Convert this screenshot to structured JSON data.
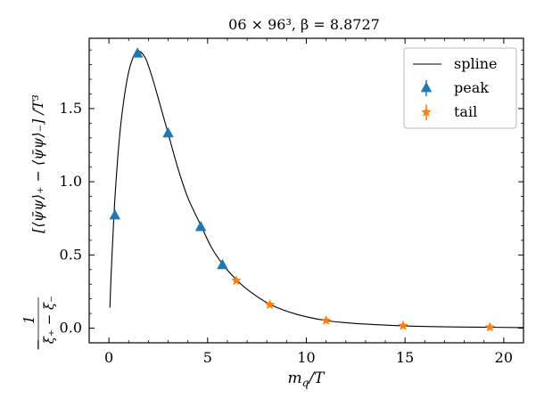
{
  "chart_data": {
    "type": "scatter",
    "title": "06 × 96³, β = 8.8727",
    "xlabel": "m_q/T",
    "ylabel": {
      "prefix": "1",
      "denominator": "ξ₊ − ξ₋",
      "body": "[⟨ψ̄ψ⟩₊ − ⟨ψ̄ψ⟩₋] /T³"
    },
    "xlim": [
      -1.0,
      21.0
    ],
    "ylim": [
      -0.1,
      1.98
    ],
    "x_ticks": [
      0,
      5,
      10,
      15,
      20
    ],
    "y_ticks": [
      0.0,
      0.5,
      1.0,
      1.5
    ],
    "x_tick_labels": [
      "0",
      "5",
      "10",
      "15",
      "20"
    ],
    "y_tick_labels": [
      "0.0",
      "0.5",
      "1.0",
      "1.5"
    ],
    "grid": false,
    "legend_position": "top-right",
    "series": [
      {
        "name": "spline",
        "type": "line",
        "color": "#000000",
        "x": [
          0.05,
          0.1,
          0.2,
          0.3,
          0.45,
          0.6,
          0.8,
          1.0,
          1.2,
          1.4,
          1.55,
          1.7,
          1.9,
          2.2,
          2.5,
          3.0,
          3.5,
          4.0,
          4.7,
          5.2,
          5.8,
          6.5,
          7.2,
          8.2,
          9.5,
          11.0,
          12.5,
          14.9,
          17.0,
          19.3,
          21.0
        ],
        "y": [
          0.14,
          0.33,
          0.62,
          0.88,
          1.17,
          1.39,
          1.6,
          1.75,
          1.84,
          1.885,
          1.89,
          1.875,
          1.83,
          1.71,
          1.57,
          1.33,
          1.09,
          0.89,
          0.69,
          0.55,
          0.43,
          0.325,
          0.245,
          0.16,
          0.095,
          0.052,
          0.032,
          0.016,
          0.009,
          0.006,
          0.004
        ]
      },
      {
        "name": "peak",
        "type": "scatter",
        "marker": "triangle",
        "color": "#1f77b4",
        "x": [
          0.3,
          1.45,
          3.0,
          4.65,
          5.75
        ],
        "y": [
          0.77,
          1.875,
          1.33,
          0.69,
          0.43
        ]
      },
      {
        "name": "tail",
        "type": "scatter",
        "marker": "star",
        "color": "#ff7f0e",
        "x": [
          6.45,
          8.15,
          11.0,
          14.9,
          19.3
        ],
        "y": [
          0.325,
          0.16,
          0.052,
          0.016,
          0.006
        ]
      }
    ]
  }
}
